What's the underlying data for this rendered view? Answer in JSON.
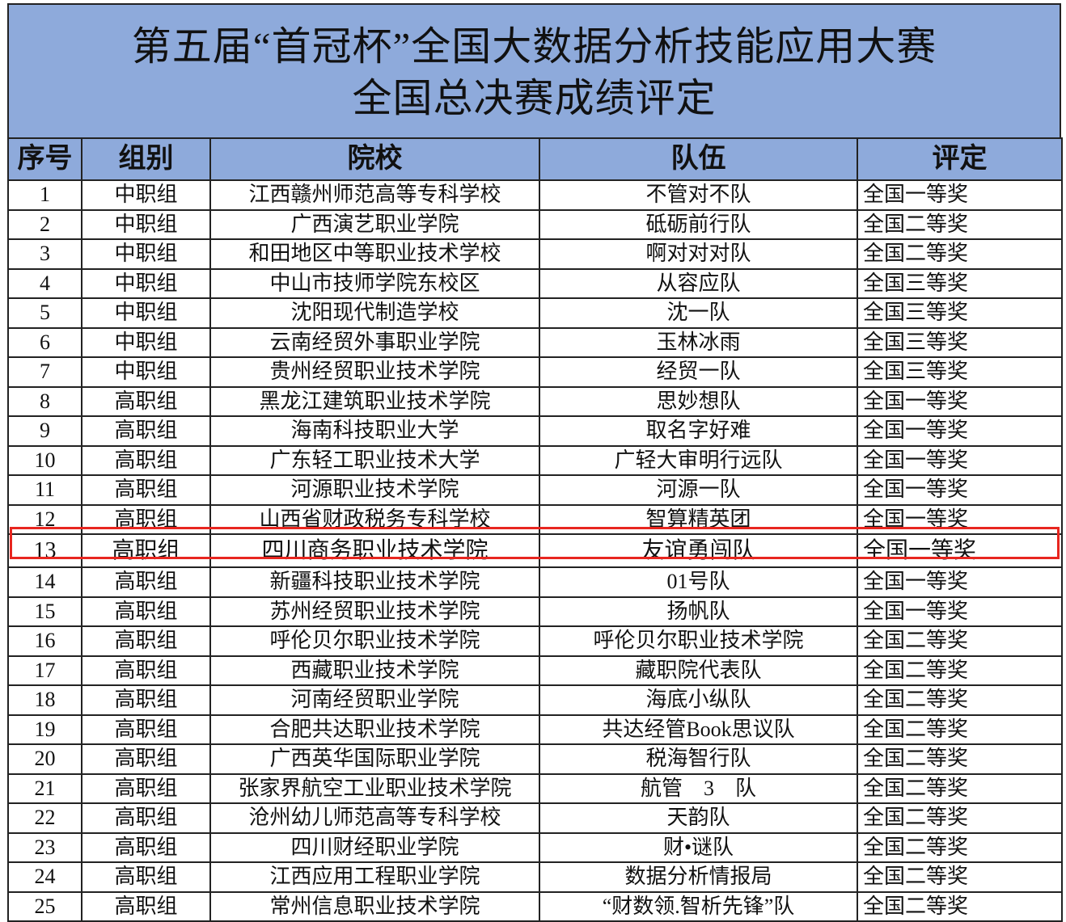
{
  "title": {
    "line1": "第五届“首冠杯”全国大数据分析技能应用大赛",
    "line2": "全国总决赛成绩评定"
  },
  "columns": [
    "序号",
    "组别",
    "院校",
    "队伍",
    "评定"
  ],
  "highlight_color": "#e8261f",
  "header_color": "#8eaadb",
  "highlighted_row": "13",
  "rows": [
    [
      "1",
      "中职组",
      "江西赣州师范高等专科学校",
      "不管对不队",
      "全国一等奖"
    ],
    [
      "2",
      "中职组",
      "广西演艺职业学院",
      "砥砺前行队",
      "全国二等奖"
    ],
    [
      "3",
      "中职组",
      "和田地区中等职业技术学校",
      "啊对对对队",
      "全国二等奖"
    ],
    [
      "4",
      "中职组",
      "中山市技师学院东校区",
      "从容应队",
      "全国三等奖"
    ],
    [
      "5",
      "中职组",
      "沈阳现代制造学校",
      "沈一队",
      "全国三等奖"
    ],
    [
      "6",
      "中职组",
      "云南经贸外事职业学院",
      "玉林冰雨",
      "全国三等奖"
    ],
    [
      "7",
      "中职组",
      "贵州经贸职业技术学院",
      "经贸一队",
      "全国三等奖"
    ],
    [
      "8",
      "高职组",
      "黑龙江建筑职业技术学院",
      "思妙想队",
      "全国一等奖"
    ],
    [
      "9",
      "高职组",
      "海南科技职业大学",
      "取名字好难",
      "全国一等奖"
    ],
    [
      "10",
      "高职组",
      "广东轻工职业技术大学",
      "广轻大审明行远队",
      "全国一等奖"
    ],
    [
      "11",
      "高职组",
      "河源职业技术学院",
      "河源一队",
      "全国一等奖"
    ],
    [
      "12",
      "高职组",
      "山西省财政税务专科学校",
      "智算精英团",
      "全国一等奖"
    ],
    [
      "13",
      "高职组",
      "四川商务职业技术学院",
      "友谊勇闯队",
      "全国一等奖"
    ],
    [
      "14",
      "高职组",
      "新疆科技职业技术学院",
      "01号队",
      "全国一等奖"
    ],
    [
      "15",
      "高职组",
      "苏州经贸职业技术学院",
      "扬帆队",
      "全国一等奖"
    ],
    [
      "16",
      "高职组",
      "呼伦贝尔职业技术学院",
      "呼伦贝尔职业技术学院",
      "全国二等奖"
    ],
    [
      "17",
      "高职组",
      "西藏职业技术学院",
      "藏职院代表队",
      "全国二等奖"
    ],
    [
      "18",
      "高职组",
      "河南经贸职业学院",
      "海底小纵队",
      "全国二等奖"
    ],
    [
      "19",
      "高职组",
      "合肥共达职业技术学院",
      "共达经管Book思议队",
      "全国二等奖"
    ],
    [
      "20",
      "高职组",
      "广西英华国际职业学院",
      "税海智行队",
      "全国二等奖"
    ],
    [
      "21",
      "高职组",
      "张家界航空工业职业技术学院",
      "航管　3　队",
      "全国二等奖"
    ],
    [
      "22",
      "高职组",
      "沧州幼儿师范高等专科学校",
      "天韵队",
      "全国二等奖"
    ],
    [
      "23",
      "高职组",
      "四川财经职业学院",
      "财•谜队",
      "全国二等奖"
    ],
    [
      "24",
      "高职组",
      "江西应用工程职业学院",
      "数据分析情报局",
      "全国二等奖"
    ],
    [
      "25",
      "高职组",
      "常州信息职业技术学院",
      "“财数领.智析先锋”队",
      "全国二等奖"
    ]
  ]
}
